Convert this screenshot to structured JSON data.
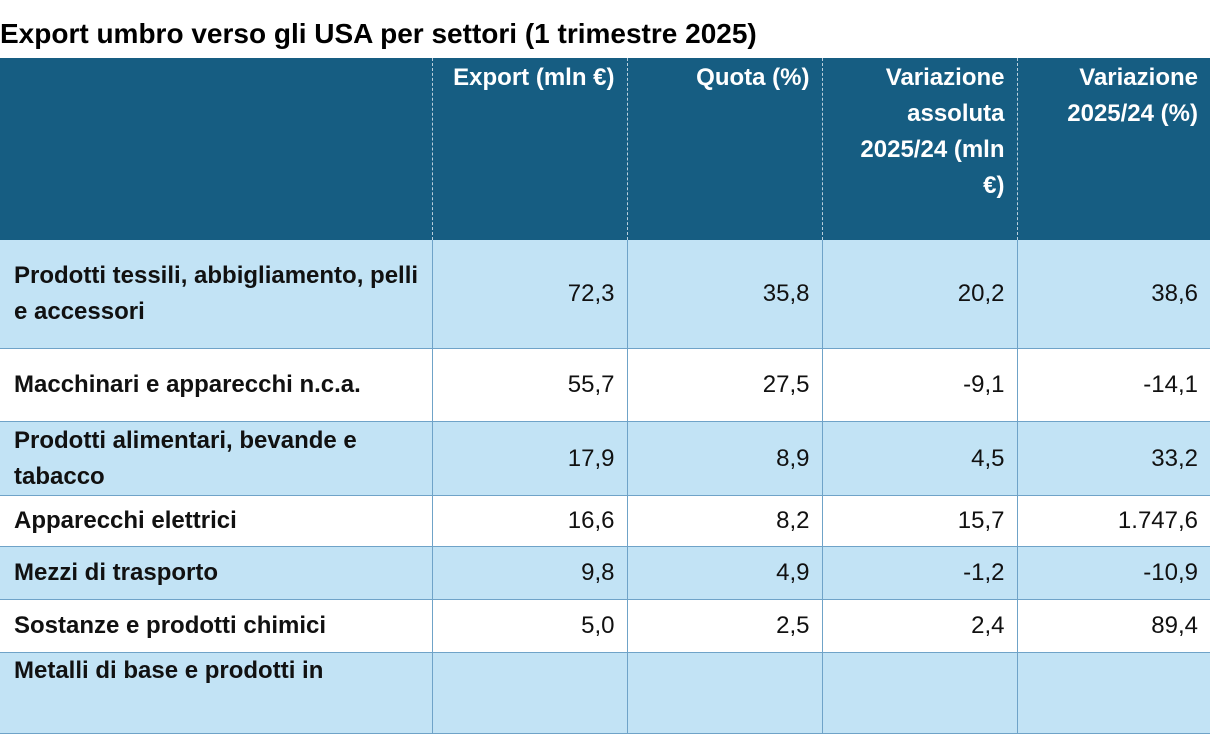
{
  "title": "Export umbro verso gli USA per settori (1 trimestre 2025)",
  "table": {
    "headers": [
      "",
      "Export (mln €)",
      "Quota (%)",
      "Variazione assoluta 2025/24 (mln €)",
      "Variazione 2025/24 (%)"
    ],
    "rows": [
      [
        "Prodotti tessili, abbigliamento, pelli e accessori",
        "72,3",
        "35,8",
        "20,2",
        "38,6"
      ],
      [
        "Macchinari e apparecchi n.c.a.",
        "55,7",
        "27,5",
        "-9,1",
        "-14,1"
      ],
      [
        "Prodotti alimentari, bevande e tabacco",
        "17,9",
        "8,9",
        "4,5",
        "33,2"
      ],
      [
        "Apparecchi elettrici",
        "16,6",
        "8,2",
        "15,7",
        "1.747,6"
      ],
      [
        "Mezzi di trasporto",
        "9,8",
        "4,9",
        "-1,2",
        "-10,9"
      ],
      [
        "Sostanze e prodotti chimici",
        "5,0",
        "2,5",
        "2,4",
        "89,4"
      ],
      [
        "Metalli di base e prodotti in",
        "",
        "",
        "",
        ""
      ]
    ]
  }
}
